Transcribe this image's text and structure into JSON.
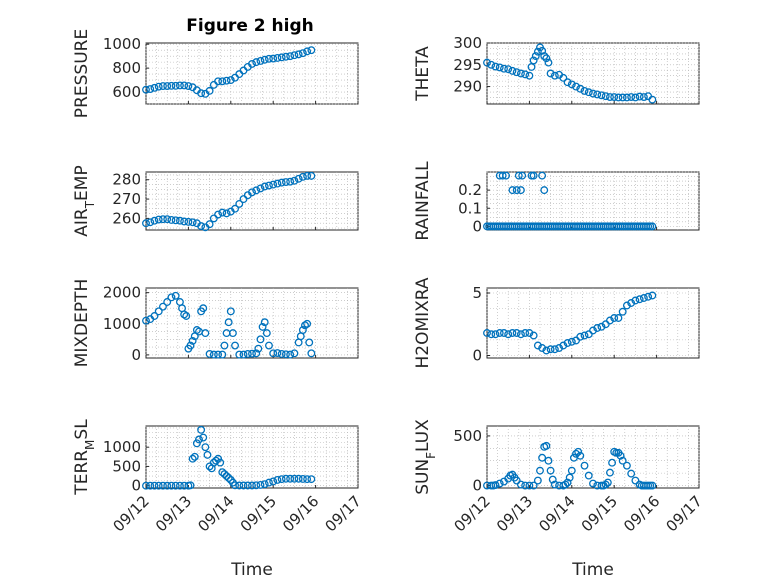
{
  "figure": {
    "title": "Figure 2 high"
  },
  "chart_data": [
    {
      "type": "scatter",
      "ylabel": "PRESSURE",
      "title": "Figure 2 high",
      "xlabel": "",
      "xlim": [
        0,
        5
      ],
      "xticks": [
        0,
        1,
        2,
        3,
        4,
        5
      ],
      "xticklabels": [
        "09/12",
        "09/13",
        "09/14",
        "09/15",
        "09/16",
        "09/17"
      ],
      "ylim": [
        500,
        1010
      ],
      "yticks": [
        600,
        800,
        1000
      ],
      "yticklabels": [
        "600",
        "800",
        "1000"
      ],
      "grid": true,
      "series": [
        {
          "x": [
            0,
            0.1,
            0.2,
            0.3,
            0.4,
            0.5,
            0.6,
            0.7,
            0.8,
            0.9,
            1.0,
            1.1,
            1.2,
            1.3,
            1.4,
            1.5,
            1.6,
            1.7,
            1.8,
            1.9,
            2.0,
            2.1,
            2.2,
            2.3,
            2.4,
            2.5,
            2.6,
            2.7,
            2.8,
            2.9,
            3.0,
            3.1,
            3.2,
            3.3,
            3.4,
            3.5,
            3.6,
            3.7,
            3.8,
            3.9
          ],
          "y": [
            620,
            625,
            635,
            645,
            650,
            650,
            652,
            652,
            655,
            655,
            650,
            640,
            615,
            590,
            585,
            610,
            660,
            690,
            690,
            695,
            700,
            720,
            750,
            780,
            810,
            835,
            850,
            860,
            870,
            878,
            880,
            885,
            890,
            895,
            900,
            908,
            915,
            925,
            940,
            950
          ]
        }
      ]
    },
    {
      "type": "scatter",
      "ylabel": "THETA",
      "xlim": [
        0,
        5
      ],
      "xticks": [
        0,
        1,
        2,
        3,
        4,
        5
      ],
      "xticklabels": [
        "09/12",
        "09/13",
        "09/14",
        "09/15",
        "09/16",
        "09/17"
      ],
      "ylim": [
        286,
        300
      ],
      "yticks": [
        290,
        295,
        300
      ],
      "yticklabels": [
        "290",
        "295",
        "300"
      ],
      "grid": true,
      "series": [
        {
          "x": [
            0,
            0.1,
            0.2,
            0.3,
            0.4,
            0.5,
            0.6,
            0.7,
            0.8,
            0.9,
            1.0,
            1.05,
            1.1,
            1.15,
            1.2,
            1.25,
            1.3,
            1.35,
            1.4,
            1.45,
            1.5,
            1.6,
            1.7,
            1.8,
            1.9,
            2.0,
            2.1,
            2.2,
            2.3,
            2.4,
            2.5,
            2.6,
            2.7,
            2.8,
            2.9,
            3.0,
            3.1,
            3.2,
            3.3,
            3.4,
            3.5,
            3.6,
            3.7,
            3.8,
            3.9
          ],
          "y": [
            295.5,
            295,
            294.6,
            294.4,
            294.1,
            294,
            293.6,
            293.3,
            293,
            292.8,
            292.5,
            294.5,
            296,
            297,
            298,
            299,
            298.2,
            297,
            296.5,
            295.5,
            293,
            292.5,
            292.7,
            292,
            291,
            290.5,
            290,
            289.5,
            289,
            288.7,
            288.4,
            288.2,
            288,
            287.8,
            287.6,
            287.6,
            287.5,
            287.5,
            287.5,
            287.6,
            287.5,
            287.7,
            287.6,
            287.8,
            287
          ]
        }
      ]
    },
    {
      "type": "scatter",
      "ylabel": "AIR_TEMP",
      "xlim": [
        0,
        5
      ],
      "xticks": [
        0,
        1,
        2,
        3,
        4,
        5
      ],
      "xticklabels": [
        "09/12",
        "09/13",
        "09/14",
        "09/15",
        "09/16",
        "09/17"
      ],
      "ylim": [
        254,
        284
      ],
      "yticks": [
        260,
        270,
        280
      ],
      "yticklabels": [
        "260",
        "270",
        "280"
      ],
      "grid": true,
      "series": [
        {
          "x": [
            0,
            0.1,
            0.2,
            0.3,
            0.4,
            0.5,
            0.6,
            0.7,
            0.8,
            0.9,
            1.0,
            1.1,
            1.2,
            1.3,
            1.4,
            1.5,
            1.6,
            1.7,
            1.8,
            1.9,
            2.0,
            2.1,
            2.2,
            2.3,
            2.4,
            2.5,
            2.6,
            2.7,
            2.8,
            2.9,
            3.0,
            3.1,
            3.2,
            3.3,
            3.4,
            3.5,
            3.6,
            3.7,
            3.8,
            3.9
          ],
          "y": [
            257.5,
            258,
            258.8,
            259.4,
            259.6,
            259.6,
            259.2,
            259,
            258.8,
            258.4,
            258.2,
            258,
            257.5,
            256,
            255.4,
            257,
            260,
            262,
            263,
            262.6,
            263.5,
            265,
            267.5,
            270,
            272,
            273.5,
            274.5,
            275.5,
            276.5,
            277,
            277.5,
            278,
            278.5,
            278.8,
            279,
            279.5,
            280.5,
            281.5,
            282,
            282
          ]
        }
      ]
    },
    {
      "type": "scatter",
      "ylabel": "RAINFALL",
      "xlim": [
        0,
        5
      ],
      "xticks": [
        0,
        1,
        2,
        3,
        4,
        5
      ],
      "xticklabels": [
        "09/12",
        "09/13",
        "09/14",
        "09/15",
        "09/16",
        "09/17"
      ],
      "ylim": [
        -0.02,
        0.3
      ],
      "yticks": [
        0,
        0.1,
        0.2
      ],
      "yticklabels": [
        "0",
        "0.1",
        "0.2"
      ],
      "grid": true,
      "series": [
        {
          "x": [
            0,
            0.05,
            0.1,
            0.15,
            0.2,
            0.25,
            0.3,
            0.35,
            0.4,
            0.45,
            0.5,
            0.55,
            0.6,
            0.65,
            0.7,
            0.75,
            0.8,
            0.85,
            0.9,
            0.95,
            1.0,
            1.05,
            1.1,
            1.15,
            1.2,
            1.25,
            1.3,
            1.35,
            1.4,
            1.45,
            1.5,
            1.55,
            1.6,
            1.65,
            1.7,
            1.75,
            1.8,
            1.85,
            1.9,
            1.95,
            2.0,
            2.05,
            2.1,
            2.15,
            2.2,
            2.25,
            2.3,
            2.35,
            2.4,
            2.45,
            2.5,
            2.55,
            2.6,
            2.65,
            2.7,
            2.75,
            2.8,
            2.85,
            2.9,
            2.95,
            3.0,
            3.05,
            3.1,
            3.15,
            3.2,
            3.25,
            3.3,
            3.35,
            3.4,
            3.45,
            3.5,
            3.55,
            3.6,
            3.65,
            3.7,
            3.75,
            3.8,
            3.85,
            3.9,
            0.3,
            0.37,
            0.45,
            0.6,
            0.7,
            0.8,
            1.05,
            1.1,
            1.3,
            0.75,
            1.35,
            0.83
          ],
          "y": [
            0,
            0,
            0,
            0,
            0,
            0,
            0,
            0,
            0,
            0,
            0,
            0,
            0,
            0,
            0,
            0,
            0,
            0,
            0,
            0,
            0,
            0,
            0,
            0,
            0,
            0,
            0,
            0,
            0,
            0,
            0,
            0,
            0,
            0,
            0,
            0,
            0,
            0,
            0,
            0,
            0,
            0,
            0,
            0,
            0,
            0,
            0,
            0,
            0,
            0,
            0,
            0,
            0,
            0,
            0,
            0,
            0,
            0,
            0,
            0,
            0,
            0,
            0,
            0,
            0,
            0,
            0,
            0,
            0,
            0,
            0,
            0,
            0,
            0,
            0,
            0,
            0,
            0,
            0,
            0.28,
            0.28,
            0.28,
            0.2,
            0.2,
            0.2,
            0.28,
            0.28,
            0.28,
            0.28,
            0.2,
            0.28
          ]
        }
      ]
    },
    {
      "type": "scatter",
      "ylabel": "MIXDEPTH",
      "xlim": [
        0,
        5
      ],
      "xticks": [
        0,
        1,
        2,
        3,
        4,
        5
      ],
      "xticklabels": [
        "09/12",
        "09/13",
        "09/14",
        "09/15",
        "09/16",
        "09/17"
      ],
      "ylim": [
        -100,
        2150
      ],
      "yticks": [
        0,
        1000,
        2000
      ],
      "yticklabels": [
        "0",
        "1000",
        "2000"
      ],
      "grid": true,
      "series": [
        {
          "x": [
            0,
            0.1,
            0.2,
            0.3,
            0.4,
            0.5,
            0.6,
            0.7,
            0.8,
            0.85,
            0.9,
            0.95,
            1.0,
            1.05,
            1.1,
            1.15,
            1.2,
            1.25,
            1.3,
            1.35,
            1.4,
            1.5,
            1.6,
            1.7,
            1.8,
            1.85,
            1.9,
            1.95,
            2.0,
            2.05,
            2.1,
            2.2,
            2.3,
            2.4,
            2.5,
            2.6,
            2.65,
            2.7,
            2.75,
            2.8,
            2.85,
            2.9,
            3.0,
            3.1,
            3.2,
            3.3,
            3.4,
            3.5,
            3.6,
            3.65,
            3.7,
            3.75,
            3.8,
            3.85,
            3.9
          ],
          "y": [
            1100,
            1150,
            1250,
            1400,
            1550,
            1700,
            1850,
            1900,
            1700,
            1500,
            1300,
            1250,
            200,
            300,
            450,
            600,
            800,
            750,
            1400,
            1500,
            700,
            30,
            10,
            10,
            10,
            300,
            700,
            1050,
            1400,
            700,
            300,
            10,
            10,
            30,
            40,
            50,
            200,
            500,
            900,
            1050,
            700,
            300,
            50,
            60,
            30,
            20,
            10,
            50,
            400,
            600,
            800,
            950,
            1000,
            400,
            50
          ]
        }
      ]
    },
    {
      "type": "scatter",
      "ylabel": "H2OMIXRA",
      "xlim": [
        0,
        5
      ],
      "xticks": [
        0,
        1,
        2,
        3,
        4,
        5
      ],
      "xticklabels": [
        "09/12",
        "09/13",
        "09/14",
        "09/15",
        "09/16",
        "09/17"
      ],
      "ylim": [
        -0.2,
        5.4
      ],
      "yticks": [
        0,
        5
      ],
      "yticklabels": [
        "0",
        "5"
      ],
      "grid": true,
      "series": [
        {
          "x": [
            0,
            0.1,
            0.2,
            0.3,
            0.4,
            0.5,
            0.6,
            0.7,
            0.8,
            0.9,
            1.0,
            1.1,
            1.2,
            1.3,
            1.4,
            1.5,
            1.6,
            1.7,
            1.8,
            1.9,
            2.0,
            2.1,
            2.2,
            2.3,
            2.4,
            2.5,
            2.6,
            2.7,
            2.8,
            2.9,
            3.0,
            3.1,
            3.2,
            3.3,
            3.4,
            3.5,
            3.6,
            3.7,
            3.8,
            3.9
          ],
          "y": [
            1.8,
            1.7,
            1.7,
            1.8,
            1.8,
            1.7,
            1.8,
            1.8,
            1.7,
            1.8,
            1.8,
            1.6,
            0.8,
            0.6,
            0.4,
            0.5,
            0.5,
            0.6,
            0.8,
            1.0,
            1.1,
            1.2,
            1.5,
            1.6,
            1.7,
            2.0,
            2.2,
            2.3,
            2.5,
            2.8,
            3.0,
            3.0,
            3.5,
            4.0,
            4.2,
            4.4,
            4.5,
            4.6,
            4.7,
            4.8
          ]
        }
      ]
    },
    {
      "type": "scatter",
      "ylabel": "TERR_MSL",
      "xlim": [
        0,
        5
      ],
      "xticks": [
        0,
        1,
        2,
        3,
        4,
        5
      ],
      "xticklabels": [
        "09/12",
        "09/13",
        "09/14",
        "09/15",
        "09/16",
        "09/17"
      ],
      "ylim": [
        -60,
        1550
      ],
      "yticks": [
        0,
        500,
        1000
      ],
      "yticklabels": [
        "0",
        "500",
        "1000"
      ],
      "grid": true,
      "series": [
        {
          "x": [
            0,
            0.1,
            0.2,
            0.3,
            0.4,
            0.5,
            0.6,
            0.7,
            0.8,
            0.9,
            1.0,
            1.05,
            1.1,
            1.15,
            1.2,
            1.25,
            1.3,
            1.35,
            1.4,
            1.45,
            1.5,
            1.55,
            1.6,
            1.65,
            1.7,
            1.75,
            1.8,
            1.85,
            1.9,
            1.95,
            2.0,
            2.05,
            2.1,
            2.2,
            2.3,
            2.4,
            2.5,
            2.6,
            2.7,
            2.8,
            2.9,
            3.0,
            3.1,
            3.2,
            3.3,
            3.4,
            3.5,
            3.6,
            3.7,
            3.8,
            3.9
          ],
          "y": [
            0,
            0,
            0,
            0,
            0,
            0,
            0,
            0,
            0,
            0,
            0,
            10,
            700,
            750,
            1100,
            1200,
            1450,
            1250,
            1000,
            800,
            500,
            450,
            600,
            650,
            700,
            600,
            350,
            300,
            250,
            200,
            150,
            80,
            10,
            5,
            5,
            5,
            5,
            10,
            20,
            40,
            80,
            110,
            150,
            170,
            180,
            180,
            180,
            180,
            175,
            170,
            170
          ]
        }
      ]
    },
    {
      "type": "scatter",
      "ylabel": "SUN_FLUX",
      "xlim": [
        0,
        5
      ],
      "xticks": [
        0,
        1,
        2,
        3,
        4,
        5
      ],
      "xticklabels": [
        "09/12",
        "09/13",
        "09/14",
        "09/15",
        "09/16",
        "09/17"
      ],
      "ylim": [
        -25,
        600
      ],
      "yticks": [
        0,
        500
      ],
      "yticklabels": [
        "0",
        "500"
      ],
      "grid": true,
      "series": [
        {
          "x": [
            0,
            0.1,
            0.15,
            0.2,
            0.3,
            0.4,
            0.5,
            0.55,
            0.6,
            0.65,
            0.7,
            0.8,
            0.9,
            1.0,
            1.1,
            1.2,
            1.25,
            1.3,
            1.35,
            1.4,
            1.45,
            1.5,
            1.55,
            1.6,
            1.7,
            1.8,
            1.85,
            1.9,
            1.95,
            2.0,
            2.05,
            2.1,
            2.15,
            2.2,
            2.3,
            2.4,
            2.5,
            2.6,
            2.7,
            2.75,
            2.8,
            2.85,
            2.9,
            2.95,
            3.0,
            3.05,
            3.1,
            3.15,
            3.2,
            3.3,
            3.4,
            3.5,
            3.6,
            3.65,
            3.7,
            3.75,
            3.8,
            3.85,
            3.9
          ],
          "y": [
            0,
            0,
            0,
            5,
            20,
            40,
            70,
            100,
            110,
            80,
            50,
            10,
            0,
            0,
            0,
            50,
            150,
            280,
            390,
            400,
            250,
            150,
            60,
            10,
            0,
            0,
            10,
            30,
            80,
            150,
            280,
            320,
            340,
            300,
            200,
            100,
            20,
            0,
            0,
            0,
            10,
            30,
            130,
            230,
            340,
            330,
            330,
            300,
            250,
            200,
            120,
            50,
            10,
            0,
            0,
            0,
            0,
            0,
            0
          ]
        }
      ]
    }
  ],
  "x_axis_label": "Time"
}
